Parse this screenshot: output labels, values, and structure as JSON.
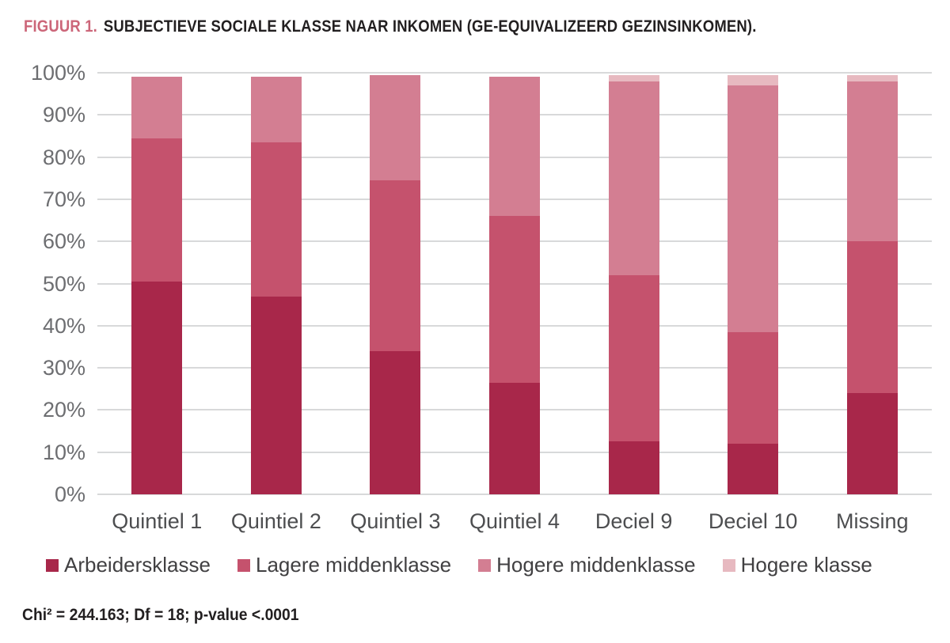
{
  "title": {
    "label": "FIGUUR 1.",
    "text": "SUBJECTIEVE SOCIALE KLASSE NAAR INKOMEN (GE-EQUIVALIZEERD GEZINSINKOMEN)."
  },
  "footer": {
    "stats": "Chi² = 244.163; Df = 18; p-value <.0001"
  },
  "colors": {
    "title_label": "#CC6679",
    "title_text": "#221F20",
    "gridline": "#D8D9DA",
    "y_tick_label": "#6D6E71",
    "x_tick_label": "#4D4E50",
    "legend_text": "#414042",
    "footer_text": "#221F20",
    "series_arbeidersklasse": "#A8274A",
    "series_lagere_middenklasse": "#C5526D",
    "series_hogere_middenklasse": "#D37E92",
    "series_hogere_klasse": "#E7B9C0"
  },
  "chart_data": {
    "type": "bar",
    "stacked": true,
    "stack_mode": "percent",
    "title": "FIGUUR 1. SUBJECTIEVE SOCIALE KLASSE NAAR INKOMEN (GE-EQUIVALIZEERD GEZINSINKOMEN).",
    "categories": [
      "Quintiel 1",
      "Quintiel 2",
      "Quintiel 3",
      "Quintiel 4",
      "Deciel 9",
      "Deciel 10",
      "Missing"
    ],
    "series": [
      {
        "name": "Arbeidersklasse",
        "color": "#A8274A",
        "values": [
          50.5,
          47,
          34,
          26.5,
          12.5,
          12,
          24
        ]
      },
      {
        "name": "Lagere middenklasse",
        "color": "#C5526D",
        "values": [
          34,
          36.5,
          40.5,
          39.5,
          39.5,
          26.5,
          36
        ]
      },
      {
        "name": "Hogere middenklasse",
        "color": "#D37E92",
        "values": [
          14.5,
          15.5,
          25,
          33,
          46,
          58.5,
          38
        ]
      },
      {
        "name": "Hogere klasse",
        "color": "#E7B9C0",
        "values": [
          0,
          0,
          0,
          0,
          1.5,
          2.5,
          1.5
        ]
      }
    ],
    "y_axis": {
      "min": 0,
      "max": 100,
      "tick_step": 10,
      "ticks": [
        "0%",
        "10%",
        "20%",
        "30%",
        "40%",
        "50%",
        "60%",
        "70%",
        "80%",
        "90%",
        "100%"
      ],
      "grid": true
    },
    "legend_position": "bottom",
    "annotation": "Chi² = 244.163; Df = 18; p-value <.0001"
  }
}
